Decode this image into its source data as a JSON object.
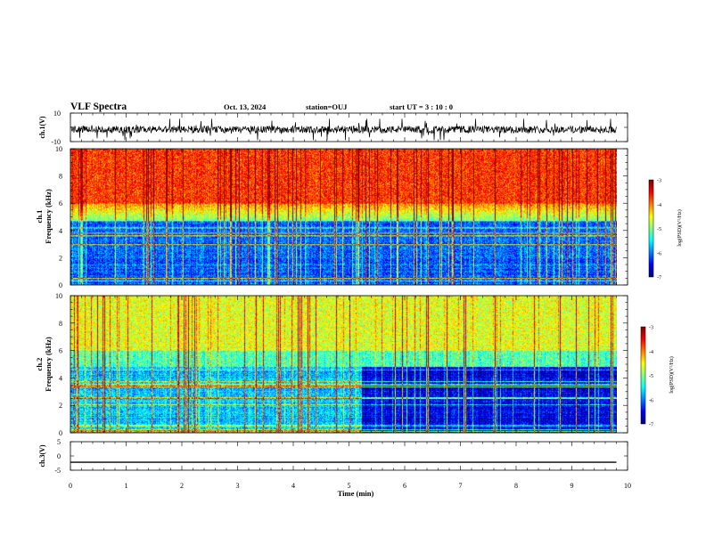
{
  "header": {
    "title": "VLF Spectra",
    "date": "Oct. 13, 2024",
    "station": "station=OUJ",
    "start_time": "start  UT =  3 : 10 : 0"
  },
  "chart_data": [
    {
      "type": "line",
      "panel": "ch1-waveform",
      "ylabel": "ch.1(V)",
      "ylim": [
        -10,
        10
      ],
      "yticks": [
        "10",
        "-10"
      ],
      "x": [
        0,
        9.8
      ],
      "series": [
        {
          "values": [
            -1.5,
            -1.5
          ]
        }
      ]
    },
    {
      "type": "heatmap",
      "panel": "ch1-spectrogram",
      "ylabel": "ch.1\nFrequency (kHz)",
      "ylim": [
        0,
        10
      ],
      "yticks": [
        "0",
        "2",
        "4",
        "6",
        "8",
        "10"
      ],
      "xlim": [
        0,
        10
      ],
      "data_extent_min": 9.8,
      "colorbar": {
        "label": "log(PSD)(V²/Hz)",
        "range": [
          -7,
          -3
        ],
        "ticks": [
          "-3",
          "-4",
          "-5",
          "-6",
          "-7"
        ]
      }
    },
    {
      "type": "heatmap",
      "panel": "ch2-spectrogram",
      "ylabel": "ch.2\nFrequency (kHz)",
      "ylim": [
        0,
        10
      ],
      "yticks": [
        "0",
        "2",
        "4",
        "6",
        "8",
        "10"
      ],
      "xlim": [
        0,
        10
      ],
      "data_extent_min": 9.8,
      "colorbar": {
        "label": "log(PSD)(V²/Hz)",
        "range": [
          -7,
          -3
        ],
        "ticks": [
          "-3",
          "-4",
          "-5",
          "-6",
          "-7"
        ]
      }
    },
    {
      "type": "line",
      "panel": "ch3-waveform",
      "ylabel": "ch.3(V)",
      "ylim": [
        -5,
        5
      ],
      "yticks": [
        "5",
        "0",
        "-5"
      ],
      "xlabel": "Time (min)",
      "xlim": [
        0,
        10
      ],
      "xticks": [
        "0",
        "1",
        "2",
        "3",
        "4",
        "5",
        "6",
        "7",
        "8",
        "9",
        "10"
      ],
      "series": [
        {
          "values": [
            -2.2,
            -2.2
          ]
        }
      ]
    }
  ],
  "colors": {
    "spectro_low": "#000080",
    "spectro_mid": "#00ff00",
    "spectro_high": "#ff0000",
    "axis": "#000000"
  }
}
